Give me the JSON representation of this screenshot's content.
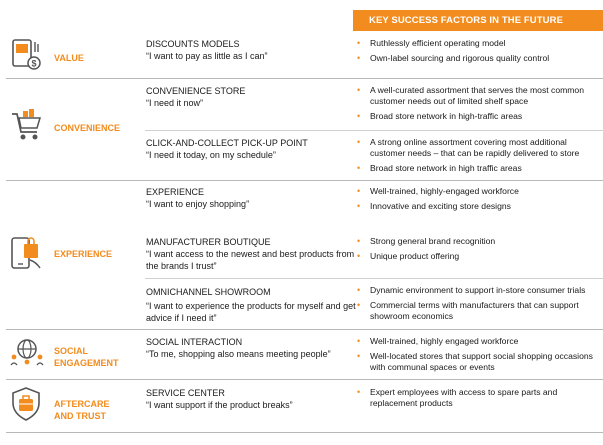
{
  "header": {
    "title": "KEY SUCCESS FACTORS IN THE FUTURE"
  },
  "colors": {
    "accent": "#f28c1e",
    "divider": "#b8b8b8"
  },
  "categories": [
    {
      "label": "VALUE",
      "icon": "wallet-money-icon",
      "models": [
        {
          "title": "DISCOUNTS MODELS",
          "quote": "“I want to pay as little as I can”",
          "factors": [
            "Ruthlessly efficient operating model",
            "Own-label sourcing and rigorous quality control"
          ]
        }
      ]
    },
    {
      "label": "CONVENIENCE",
      "icon": "shopping-cart-icon",
      "models": [
        {
          "title": "CONVENIENCE STORE",
          "quote": "“I need it now”",
          "factors": [
            "A well-curated assortment that serves the most common customer needs out of limited shelf space",
            "Broad store network in high-traffic areas"
          ]
        },
        {
          "title": "CLICK-AND-COLLECT PICK-UP POINT",
          "quote": "“I need it today, on my schedule”",
          "factors": [
            "A strong online assortment covering most additional customer needs – that can be rapidly delivered to store",
            "Broad store network in high traffic areas"
          ]
        }
      ]
    },
    {
      "label": "EXPERIENCE",
      "icon": "mobile-shopping-icon",
      "models": [
        {
          "title": "EXPERIENCE",
          "quote": "“I want to enjoy shopping”",
          "factors": [
            "Well-trained, highly-engaged workforce",
            "Innovative and exciting store designs"
          ]
        },
        {
          "title": "MANUFACTURER BOUTIQUE",
          "quote": "“I want access to the newest and best products from the brands I trust”",
          "factors": [
            "Strong general brand recognition",
            "Unique product offering"
          ]
        },
        {
          "title": "OMNICHANNEL SHOWROOM",
          "quote": "“I want to experience the products for myself and get advice if I need it”",
          "factors": [
            "Dynamic environment to support in-store consumer trials",
            "Commercial terms with manufacturers that can support showroom economics"
          ]
        }
      ]
    },
    {
      "label": "SOCIAL ENGAGEMENT",
      "label_line1": "SOCIAL",
      "label_line2": "ENGAGEMENT",
      "icon": "globe-people-icon",
      "models": [
        {
          "title": "SOCIAL INTERACTION",
          "quote": "“To me, shopping also means meeting people”",
          "factors": [
            "Well-trained, highly engaged workforce",
            "Well-located stores that support social shopping occasions with communal spaces or events"
          ]
        }
      ]
    },
    {
      "label": "AFTERCARE AND TRUST",
      "label_line1": "AFTERCARE",
      "label_line2": "AND TRUST",
      "icon": "shield-service-icon",
      "models": [
        {
          "title": "SERVICE CENTER",
          "quote": "“I want support if the product breaks”",
          "factors": [
            "Expert employees with access to spare parts and replacement products"
          ]
        }
      ]
    }
  ]
}
